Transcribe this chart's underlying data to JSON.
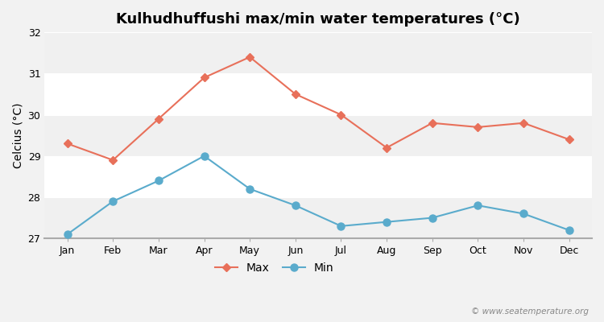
{
  "title": "Kulhudhuffushi max/min water temperatures (°C)",
  "ylabel": "Celcius (°C)",
  "months": [
    "Jan",
    "Feb",
    "Mar",
    "Apr",
    "May",
    "Jun",
    "Jul",
    "Aug",
    "Sep",
    "Oct",
    "Nov",
    "Dec"
  ],
  "max_temps": [
    29.3,
    28.9,
    29.9,
    30.9,
    31.4,
    30.5,
    30.0,
    29.2,
    29.8,
    29.7,
    29.8,
    29.4
  ],
  "min_temps": [
    27.1,
    27.9,
    28.4,
    29.0,
    28.2,
    27.8,
    27.3,
    27.4,
    27.5,
    27.8,
    27.6,
    27.2
  ],
  "max_color": "#e8705a",
  "min_color": "#5aabcc",
  "bg_color": "#f2f2f2",
  "plot_bg": "#ffffff",
  "band_color_even": "#f0f0f0",
  "band_color_odd": "#ffffff",
  "ylim": [
    27,
    32
  ],
  "yticks": [
    27,
    28,
    29,
    30,
    31,
    32
  ],
  "watermark": "© www.seatemperature.org",
  "legend_max": "Max",
  "legend_min": "Min",
  "title_fontsize": 13,
  "label_fontsize": 10,
  "tick_fontsize": 9
}
